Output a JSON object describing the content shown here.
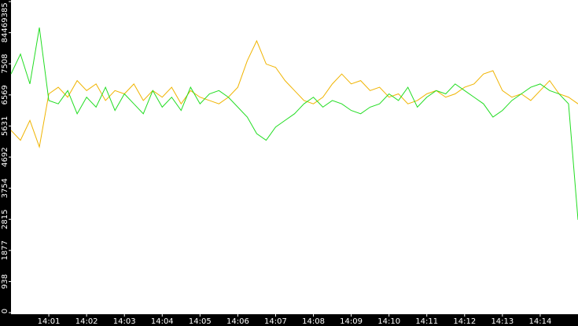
{
  "chart_data": {
    "type": "line",
    "x": [
      840,
      840.25,
      840.5,
      840.75,
      841,
      841.25,
      841.5,
      841.75,
      842,
      842.25,
      842.5,
      842.75,
      843,
      843.25,
      843.5,
      843.75,
      844,
      844.25,
      844.5,
      844.75,
      845,
      845.25,
      845.5,
      845.75,
      846,
      846.25,
      846.5,
      846.75,
      847,
      847.25,
      847.5,
      847.75,
      848,
      848.25,
      848.5,
      848.75,
      849,
      849.25,
      849.5,
      849.75,
      850,
      850.25,
      850.5,
      850.75,
      851,
      851.25,
      851.5,
      851.75,
      852,
      852.25,
      852.5,
      852.75,
      853,
      853.25,
      853.5,
      853.75,
      854,
      854.25,
      854.5,
      854.75,
      855
    ],
    "series": [
      {
        "color": "#f0b400",
        "values": [
          5500,
          5200,
          5800,
          5000,
          6600,
          6800,
          6500,
          7000,
          6700,
          6900,
          6400,
          6700,
          6600,
          6900,
          6400,
          6700,
          6500,
          6800,
          6300,
          6700,
          6500,
          6400,
          6300,
          6500,
          6800,
          7600,
          8200,
          7500,
          7400,
          7000,
          6700,
          6400,
          6300,
          6500,
          6900,
          7200,
          6900,
          7000,
          6700,
          6800,
          6500,
          6600,
          6300,
          6400,
          6600,
          6700,
          6500,
          6600,
          6800,
          6900,
          7200,
          7300,
          6700,
          6500,
          6600,
          6400,
          6700,
          7000,
          6600,
          6500,
          6300
        ]
      },
      {
        "color": "#22dd22",
        "values": [
          7200,
          7800,
          6900,
          8600,
          6400,
          6300,
          6700,
          6000,
          6500,
          6200,
          6800,
          6100,
          6600,
          6300,
          6000,
          6700,
          6200,
          6500,
          6100,
          6800,
          6300,
          6600,
          6700,
          6500,
          6200,
          5900,
          5400,
          5200,
          5600,
          5800,
          6000,
          6300,
          6500,
          6200,
          6400,
          6300,
          6100,
          6000,
          6200,
          6300,
          6600,
          6400,
          6800,
          6200,
          6500,
          6700,
          6600,
          6900,
          6700,
          6500,
          6300,
          5900,
          6100,
          6400,
          6600,
          6800,
          6900,
          6700,
          6600,
          6300,
          2800
        ]
      }
    ],
    "xlim": [
      840,
      855
    ],
    "xticks": [
      {
        "value": 841,
        "label": "14:01"
      },
      {
        "value": 842,
        "label": "14:02"
      },
      {
        "value": 843,
        "label": "14:03"
      },
      {
        "value": 844,
        "label": "14:04"
      },
      {
        "value": 845,
        "label": "14:05"
      },
      {
        "value": 846,
        "label": "14:06"
      },
      {
        "value": 847,
        "label": "14:07"
      },
      {
        "value": 848,
        "label": "14:08"
      },
      {
        "value": 849,
        "label": "14:09"
      },
      {
        "value": 850,
        "label": "14:10"
      },
      {
        "value": 851,
        "label": "14:11"
      },
      {
        "value": 852,
        "label": "14:12"
      },
      {
        "value": 853,
        "label": "14:13"
      },
      {
        "value": 854,
        "label": "14:14"
      }
    ],
    "ylim": [
      0,
      9385
    ],
    "yticks": [
      0,
      938,
      1877,
      2815,
      3754,
      4692,
      5631,
      6569,
      7508,
      8446,
      9385
    ]
  }
}
